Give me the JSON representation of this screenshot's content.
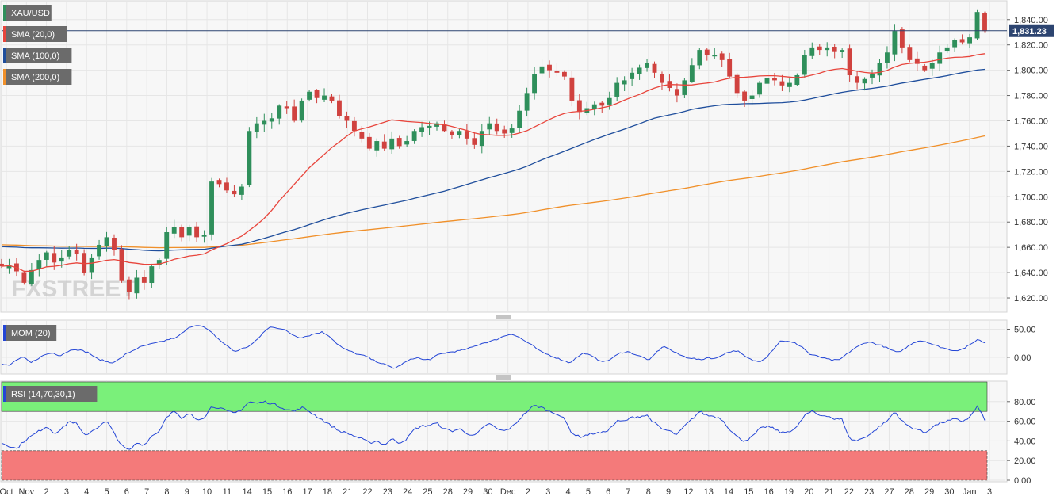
{
  "colors": {
    "up": "#2f8f5b",
    "down": "#d0423f",
    "sma20": "#e8453c",
    "sma100": "#1f4e9c",
    "sma200": "#f0902a",
    "mom": "#2345d6",
    "rsi": "#2345d6",
    "overbought": "#7af07a",
    "oversold": "#f47a7a",
    "price_line": "#2c4470",
    "legend_bg": "#6b6b6b"
  },
  "watermark": "FXSTREET",
  "chart_data": [
    {
      "type": "candlestick",
      "legend": [
        {
          "label": "XAU/USD",
          "color": "#2f8f5b"
        },
        {
          "label": "SMA (20,0)",
          "color": "#e8453c"
        },
        {
          "label": "SMA (100,0)",
          "color": "#1f4e9c"
        },
        {
          "label": "SMA (200,0)",
          "color": "#f0902a"
        }
      ],
      "last_price": 1831.23,
      "last_price_label": "1,831.23",
      "ylim": [
        1610,
        1853
      ],
      "y_ticks": [
        1620,
        1640,
        1660,
        1680,
        1700,
        1720,
        1740,
        1760,
        1780,
        1800,
        1820,
        1840
      ],
      "y_tick_labels": [
        "1,620.00",
        "1,640.00",
        "1,660.00",
        "1,680.00",
        "1,700.00",
        "1,720.00",
        "1,740.00",
        "1,760.00",
        "1,780.00",
        "1,800.00",
        "1,820.00",
        "1,840.00"
      ],
      "x_labels": [
        "Oct",
        "Nov",
        "2",
        "3",
        "4",
        "5",
        "6",
        "7",
        "8",
        "9",
        "10",
        "11",
        "14",
        "15",
        "16",
        "17",
        "18",
        "21",
        "22",
        "23",
        "24",
        "25",
        "28",
        "29",
        "30",
        "Dec",
        "2",
        "3",
        "4",
        "5",
        "6",
        "7",
        "8",
        "9",
        "12",
        "13",
        "14",
        "15",
        "16",
        "19",
        "20",
        "21",
        "22",
        "23",
        "27",
        "28",
        "29",
        "30",
        "Jan",
        "3"
      ],
      "close_anchors": [
        1645,
        1646,
        1641,
        1632,
        1642,
        1650,
        1656,
        1648,
        1652,
        1658,
        1655,
        1640,
        1652,
        1662,
        1668,
        1658,
        1634,
        1625,
        1636,
        1632,
        1645,
        1650,
        1672,
        1676,
        1668,
        1676,
        1668,
        1670,
        1712,
        1710,
        1705,
        1702,
        1708,
        1752,
        1758,
        1760,
        1762,
        1772,
        1770,
        1760,
        1776,
        1783,
        1778,
        1780,
        1776,
        1764,
        1760,
        1752,
        1746,
        1738,
        1744,
        1738,
        1746,
        1740,
        1744,
        1752,
        1755,
        1756,
        1758,
        1752,
        1749,
        1752,
        1746,
        1741,
        1752,
        1758,
        1752,
        1750,
        1754,
        1768,
        1782,
        1797,
        1803,
        1800,
        1798,
        1795,
        1776,
        1767,
        1770,
        1773,
        1772,
        1778,
        1790,
        1792,
        1798,
        1802,
        1806,
        1798,
        1790,
        1786,
        1780,
        1792,
        1804,
        1816,
        1812,
        1812,
        1808,
        1795,
        1782,
        1776,
        1780,
        1790,
        1794,
        1792,
        1788,
        1790,
        1796,
        1812,
        1818,
        1816,
        1818,
        1815,
        1816,
        1796,
        1790,
        1793,
        1797,
        1806,
        1814,
        1831,
        1818,
        1808,
        1805,
        1800,
        1806,
        1814,
        1818,
        1824,
        1822,
        1826,
        1846,
        1831
      ]
    },
    {
      "type": "line",
      "legend": [
        {
          "label": "MOM (20)",
          "color": "#2345d6"
        }
      ],
      "ylim": [
        -27,
        62
      ],
      "y_ticks": [
        0,
        50
      ],
      "y_tick_labels": [
        "0.00",
        "50.00"
      ],
      "anchors": [
        -12,
        -15,
        -5,
        0,
        -10,
        -2,
        5,
        8,
        3,
        10,
        15,
        12,
        8,
        -2,
        -6,
        -10,
        -5,
        5,
        12,
        18,
        22,
        25,
        28,
        32,
        35,
        45,
        55,
        58,
        52,
        42,
        30,
        20,
        10,
        15,
        20,
        30,
        45,
        55,
        52,
        48,
        40,
        35,
        38,
        42,
        45,
        38,
        25,
        15,
        10,
        5,
        2,
        -5,
        -10,
        -15,
        -20,
        -12,
        -5,
        0,
        -5,
        -3,
        5,
        8,
        10,
        12,
        15,
        20,
        25,
        28,
        32,
        38,
        42,
        36,
        28,
        20,
        10,
        5,
        0,
        -5,
        -10,
        0,
        8,
        2,
        -5,
        -8,
        0,
        8,
        10,
        5,
        0,
        -5,
        10,
        20,
        12,
        5,
        0,
        -2,
        -5,
        0,
        -3,
        5,
        10,
        12,
        2,
        -5,
        -8,
        0,
        15,
        30,
        28,
        25,
        18,
        5,
        2,
        -2,
        -5,
        -5,
        5,
        15,
        22,
        28,
        24,
        20,
        14,
        8,
        15,
        25,
        30,
        28,
        22,
        18,
        14,
        12,
        15,
        22,
        32,
        26
      ]
    },
    {
      "type": "line",
      "legend": [
        {
          "label": "RSI (14,70,30,1)",
          "color": "#2345d6"
        }
      ],
      "ylim": [
        0,
        100
      ],
      "y_ticks": [
        0,
        20,
        40,
        60,
        80
      ],
      "y_tick_labels": [
        "0.00",
        "20.00",
        "40.00",
        "60.00",
        "80.00"
      ],
      "overbought": 70,
      "oversold": 30,
      "anchors": [
        38,
        35,
        32,
        40,
        45,
        50,
        55,
        48,
        52,
        60,
        58,
        45,
        50,
        55,
        60,
        48,
        35,
        30,
        38,
        36,
        45,
        50,
        65,
        70,
        62,
        68,
        62,
        64,
        75,
        74,
        70,
        68,
        72,
        80,
        78,
        80,
        78,
        75,
        72,
        70,
        74,
        70,
        65,
        60,
        55,
        50,
        48,
        45,
        42,
        38,
        40,
        36,
        42,
        38,
        42,
        52,
        55,
        56,
        58,
        52,
        50,
        52,
        48,
        45,
        52,
        58,
        52,
        50,
        54,
        62,
        70,
        76,
        74,
        70,
        68,
        62,
        48,
        44,
        46,
        48,
        48,
        52,
        60,
        60,
        64,
        65,
        66,
        58,
        52,
        50,
        46,
        55,
        62,
        70,
        66,
        65,
        62,
        52,
        44,
        40,
        44,
        52,
        55,
        52,
        48,
        50,
        54,
        66,
        70,
        66,
        66,
        62,
        62,
        42,
        40,
        44,
        48,
        55,
        60,
        70,
        60,
        54,
        52,
        48,
        54,
        58,
        60,
        62,
        60,
        64,
        75,
        62
      ]
    }
  ]
}
